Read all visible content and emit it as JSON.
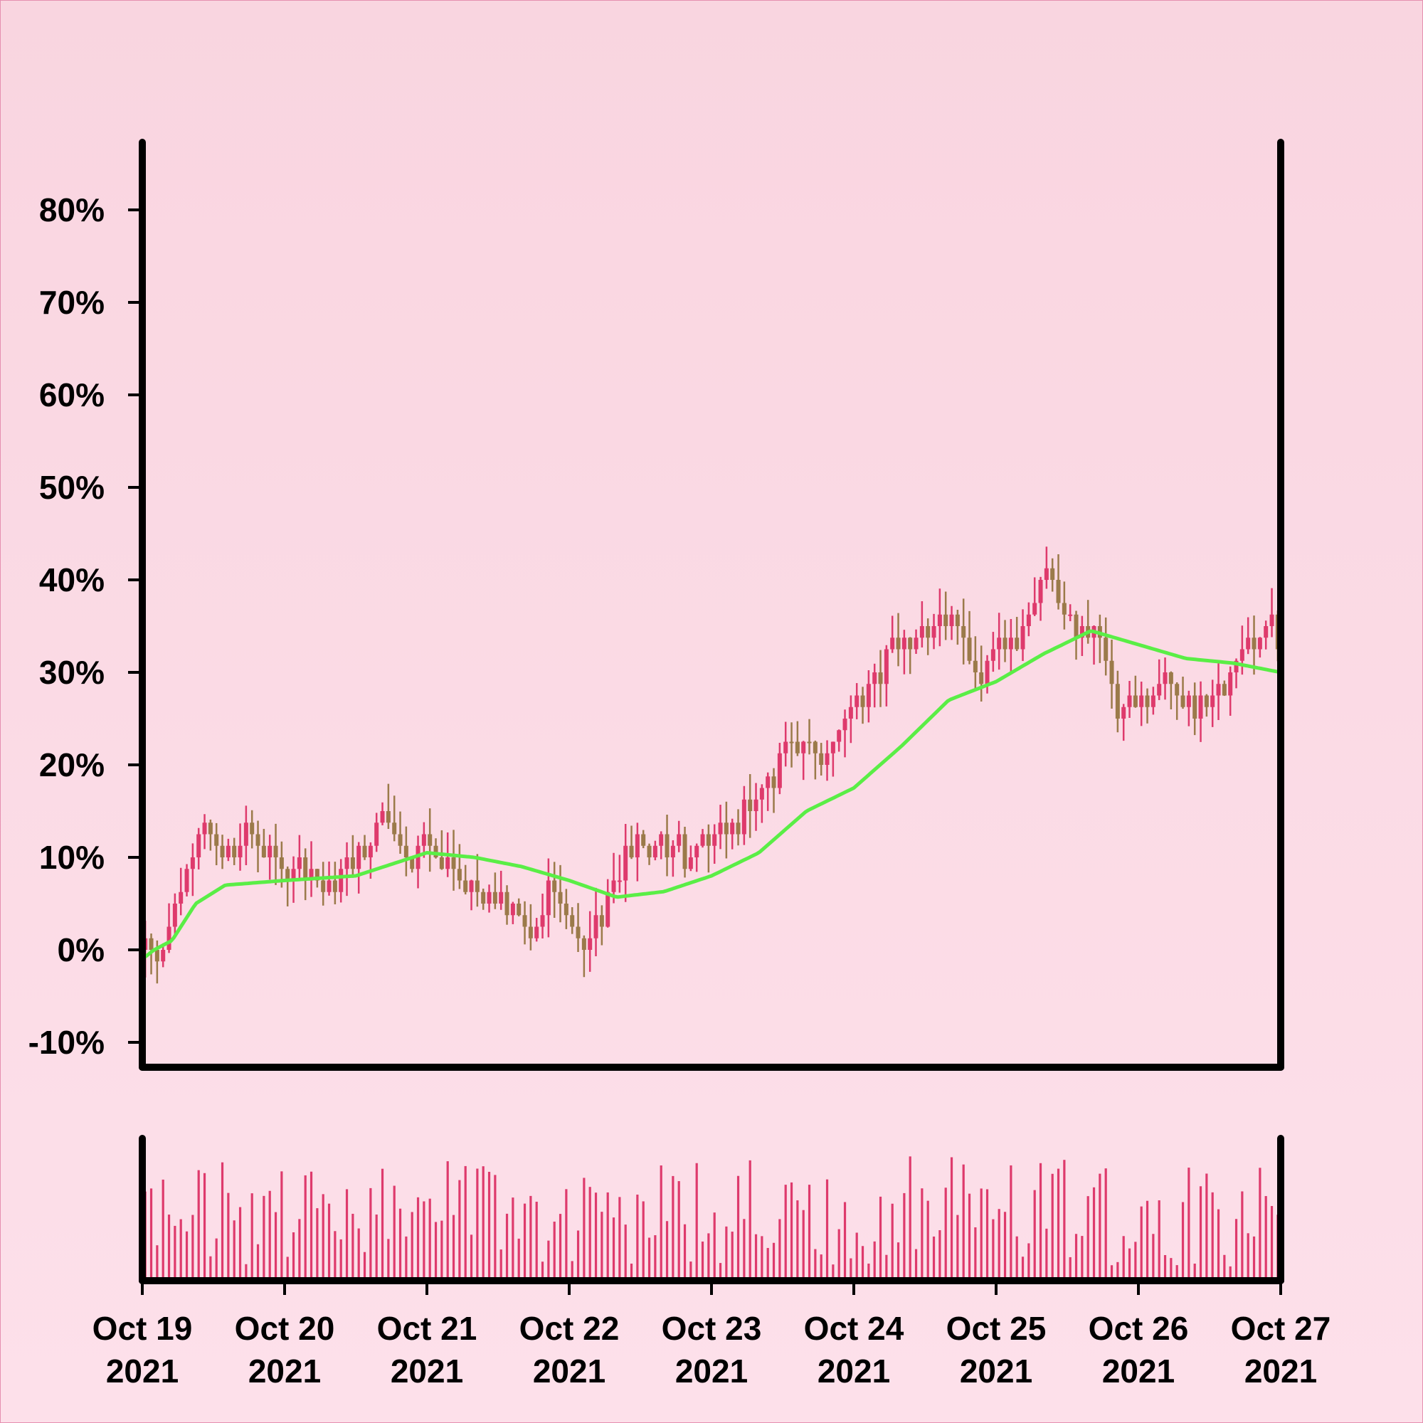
{
  "chart_data": {
    "type": "candlestick",
    "title": "",
    "xlabel": "",
    "ylabel": "",
    "ylim": [
      -0.1,
      0.8
    ],
    "y_ticks": [
      -0.1,
      0.0,
      0.1,
      0.2,
      0.3,
      0.4,
      0.5,
      0.6,
      0.7,
      0.8
    ],
    "y_tick_labels": [
      "-10%",
      "0%",
      "10%",
      "20%",
      "30%",
      "40%",
      "50%",
      "60%",
      "70%",
      "80%"
    ],
    "x_range": [
      "2021-10-19",
      "2021-10-27"
    ],
    "x_ticks": [
      "2021-10-19",
      "2021-10-20",
      "2021-10-21",
      "2021-10-22",
      "2021-10-23",
      "2021-10-24",
      "2021-10-25",
      "2021-10-26",
      "2021-10-27"
    ],
    "x_tick_labels": [
      {
        "line1": "Oct 19",
        "line2": "2021"
      },
      {
        "line1": "Oct 20",
        "line2": "2021"
      },
      {
        "line1": "Oct 21",
        "line2": "2021"
      },
      {
        "line1": "Oct 22",
        "line2": "2021"
      },
      {
        "line1": "Oct 23",
        "line2": "2021"
      },
      {
        "line1": "Oct 24",
        "line2": "2021"
      },
      {
        "line1": "Oct 25",
        "line2": "2021"
      },
      {
        "line1": "Oct 26",
        "line2": "2021"
      },
      {
        "line1": "Oct 27",
        "line2": "2021"
      }
    ],
    "close_key_points": [
      [
        "2021-10-19 00:00",
        0.0
      ],
      [
        "2021-10-19 03:00",
        -0.01
      ],
      [
        "2021-10-19 06:00",
        0.05
      ],
      [
        "2021-10-19 10:00",
        0.13
      ],
      [
        "2021-10-19 14:00",
        0.1
      ],
      [
        "2021-10-19 18:00",
        0.13
      ],
      [
        "2021-10-20 00:00",
        0.09
      ],
      [
        "2021-10-20 05:00",
        0.08
      ],
      [
        "2021-10-20 08:00",
        0.06
      ],
      [
        "2021-10-20 12:00",
        0.11
      ],
      [
        "2021-10-20 17:00",
        0.14
      ],
      [
        "2021-10-20 21:00",
        0.1
      ],
      [
        "2021-10-21 01:00",
        0.12
      ],
      [
        "2021-10-21 06:00",
        0.07
      ],
      [
        "2021-10-21 10:00",
        0.06
      ],
      [
        "2021-10-21 14:00",
        0.05
      ],
      [
        "2021-10-21 18:00",
        0.01
      ],
      [
        "2021-10-21 21:00",
        0.07
      ],
      [
        "2021-10-22 00:00",
        0.03
      ],
      [
        "2021-10-22 03:00",
        0.0
      ],
      [
        "2021-10-22 06:00",
        0.05
      ],
      [
        "2021-10-22 10:00",
        0.11
      ],
      [
        "2021-10-22 15:00",
        0.12
      ],
      [
        "2021-10-22 20:00",
        0.1
      ],
      [
        "2021-10-23 01:00",
        0.13
      ],
      [
        "2021-10-23 06:00",
        0.15
      ],
      [
        "2021-10-23 10:00",
        0.2
      ],
      [
        "2021-10-23 14:00",
        0.22
      ],
      [
        "2021-10-23 18:00",
        0.21
      ],
      [
        "2021-10-23 22:00",
        0.24
      ],
      [
        "2021-10-24 02:00",
        0.28
      ],
      [
        "2021-10-24 06:00",
        0.33
      ],
      [
        "2021-10-24 10:00",
        0.33
      ],
      [
        "2021-10-24 14:00",
        0.36
      ],
      [
        "2021-10-24 17:00",
        0.37
      ],
      [
        "2021-10-24 21:00",
        0.29
      ],
      [
        "2021-10-25 01:00",
        0.34
      ],
      [
        "2021-10-25 05:00",
        0.35
      ],
      [
        "2021-10-25 09:00",
        0.41
      ],
      [
        "2021-10-25 13:00",
        0.34
      ],
      [
        "2021-10-25 17:00",
        0.34
      ],
      [
        "2021-10-25 21:00",
        0.25
      ],
      [
        "2021-10-26 01:00",
        0.27
      ],
      [
        "2021-10-26 05:00",
        0.29
      ],
      [
        "2021-10-26 09:00",
        0.26
      ],
      [
        "2021-10-26 13:00",
        0.28
      ],
      [
        "2021-10-26 17:00",
        0.32
      ],
      [
        "2021-10-26 21:00",
        0.35
      ],
      [
        "2021-10-27 00:00",
        0.33
      ]
    ],
    "moving_average_key_points": [
      [
        "2021-10-19 00:00",
        -0.01
      ],
      [
        "2021-10-19 02:00",
        0.0
      ],
      [
        "2021-10-19 05:00",
        0.01
      ],
      [
        "2021-10-19 09:00",
        0.05
      ],
      [
        "2021-10-19 14:00",
        0.07
      ],
      [
        "2021-10-20 00:00",
        0.075
      ],
      [
        "2021-10-20 12:00",
        0.08
      ],
      [
        "2021-10-21 00:00",
        0.105
      ],
      [
        "2021-10-21 08:00",
        0.1
      ],
      [
        "2021-10-21 16:00",
        0.09
      ],
      [
        "2021-10-22 00:00",
        0.075
      ],
      [
        "2021-10-22 08:00",
        0.057
      ],
      [
        "2021-10-22 16:00",
        0.063
      ],
      [
        "2021-10-23 00:00",
        0.08
      ],
      [
        "2021-10-23 08:00",
        0.105
      ],
      [
        "2021-10-23 16:00",
        0.15
      ],
      [
        "2021-10-24 00:00",
        0.175
      ],
      [
        "2021-10-24 08:00",
        0.22
      ],
      [
        "2021-10-24 16:00",
        0.27
      ],
      [
        "2021-10-25 00:00",
        0.29
      ],
      [
        "2021-10-25 08:00",
        0.32
      ],
      [
        "2021-10-25 16:00",
        0.345
      ],
      [
        "2021-10-26 00:00",
        0.33
      ],
      [
        "2021-10-26 08:00",
        0.315
      ],
      [
        "2021-10-26 16:00",
        0.31
      ],
      [
        "2021-10-27 00:00",
        0.3
      ]
    ],
    "volume": "unlabeled bars under each candle, no axis shown",
    "colors": {
      "up_candle": "#de3a6c",
      "down_candle": "#9b7a4a",
      "moving_average": "#5aee46",
      "volume": "#de3a6c",
      "axes": "#000000"
    },
    "grid": false,
    "legend": "none"
  }
}
